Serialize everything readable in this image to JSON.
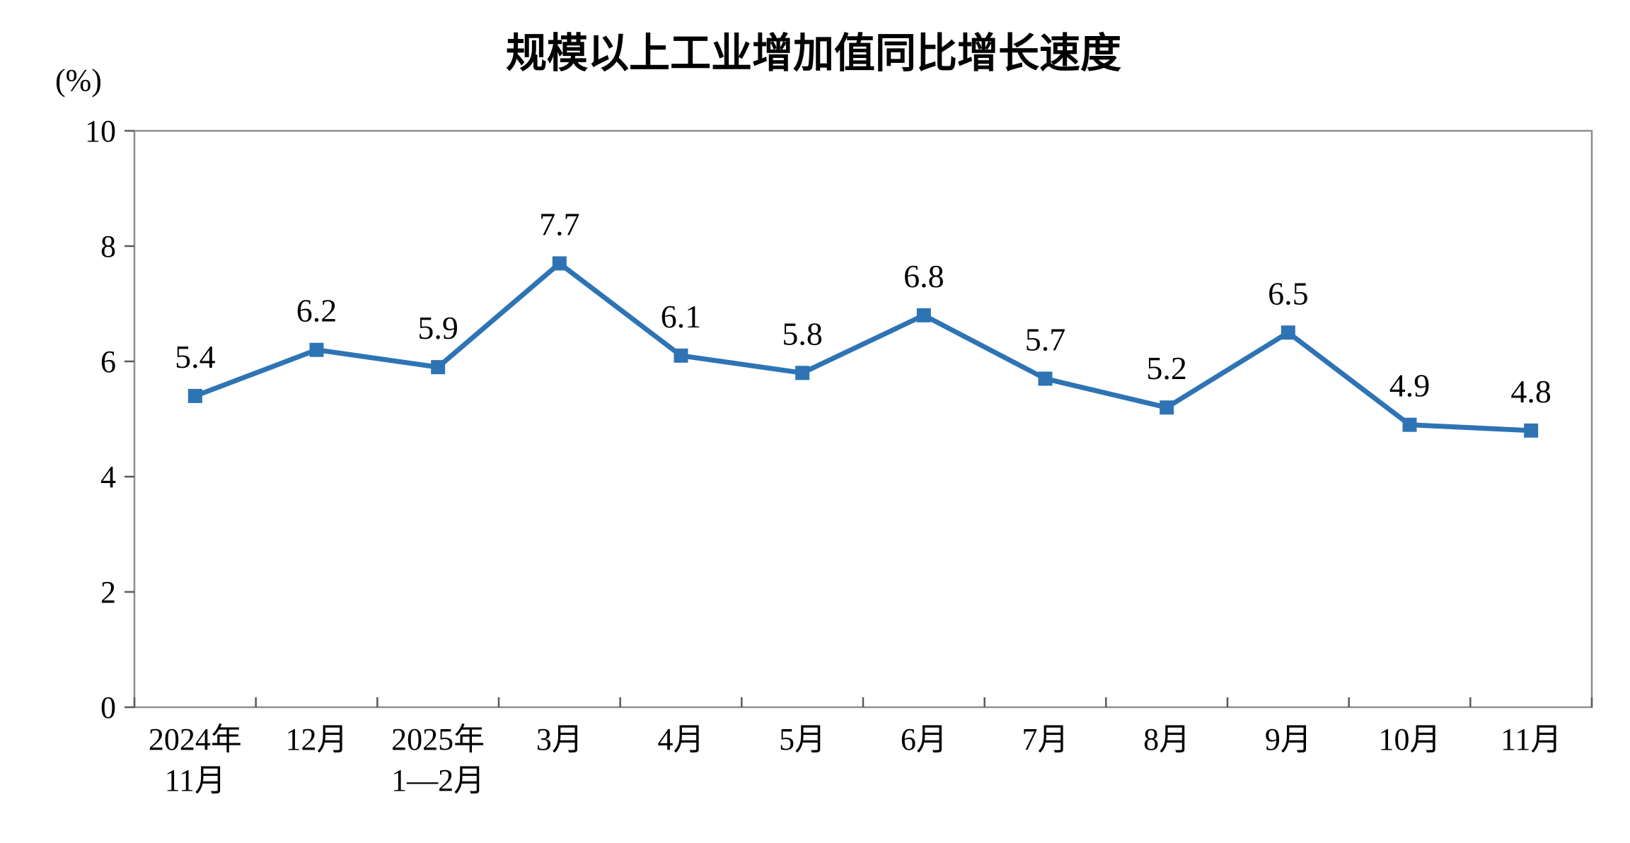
{
  "chart_data": {
    "type": "line",
    "title": "规模以上工业增加值同比增长速度",
    "unit_label": "(%)",
    "categories": [
      [
        "2024年",
        "11月"
      ],
      [
        "12月"
      ],
      [
        "2025年",
        "1—2月"
      ],
      [
        "3月"
      ],
      [
        "4月"
      ],
      [
        "5月"
      ],
      [
        "6月"
      ],
      [
        "7月"
      ],
      [
        "8月"
      ],
      [
        "9月"
      ],
      [
        "10月"
      ],
      [
        "11月"
      ]
    ],
    "values": [
      5.4,
      6.2,
      5.9,
      7.7,
      6.1,
      5.8,
      6.8,
      5.7,
      5.2,
      6.5,
      4.9,
      4.8
    ],
    "ylim": [
      0,
      10
    ],
    "yticks": [
      0,
      2,
      4,
      6,
      8,
      10
    ],
    "grid": false,
    "legend_position": "none",
    "line_color": "#2E74B5",
    "marker": "square",
    "plot_border_color": "#8E8E8E",
    "tick_color": "#595959"
  }
}
